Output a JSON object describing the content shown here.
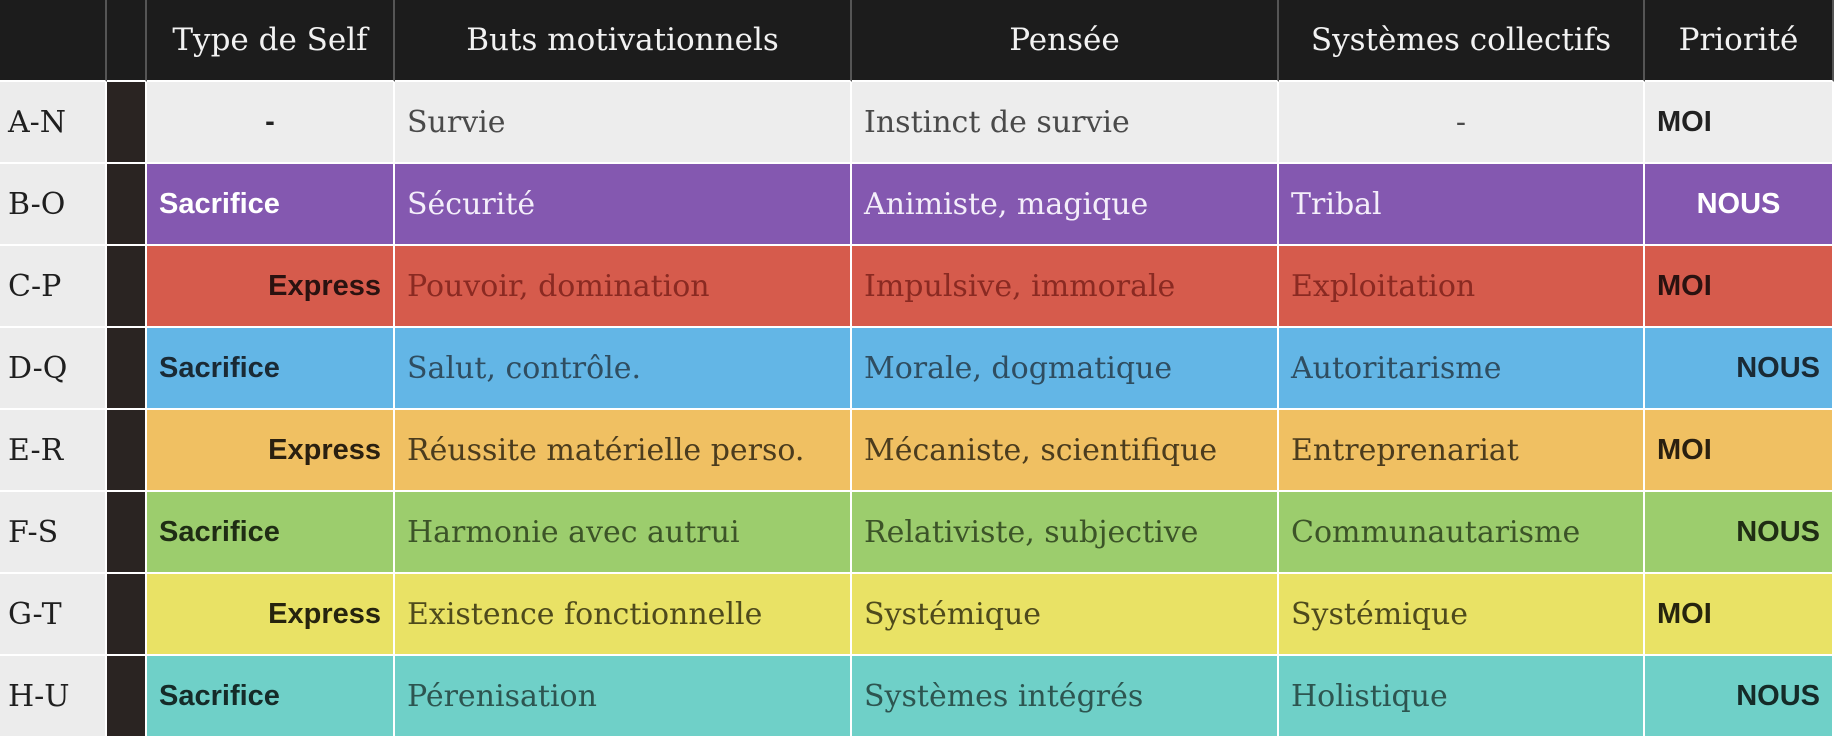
{
  "headers": [
    "",
    "",
    "Type de Self",
    "Buts motivationnels",
    "Pensée",
    "Systèmes collectifs",
    "Priorité"
  ],
  "rows": [
    {
      "label": "A-N",
      "self": "-",
      "self_kind": "dash",
      "buts": "Survie",
      "pensee": "Instinct de survie",
      "systemes": "-",
      "priorite": "MOI",
      "prio_kind": "moi",
      "bg": "#ededed",
      "text": "#4a4a4a",
      "strong": "#222222"
    },
    {
      "label": "B-O",
      "self": "Sacrifice",
      "self_kind": "sacrifice",
      "buts": "Sécurité",
      "pensee": "Animiste, magique",
      "systemes": "Tribal",
      "priorite": "NOUS",
      "prio_kind": "nous-center",
      "bg": "#8458b0",
      "text": "#f4eefa",
      "strong": "#ffffff"
    },
    {
      "label": "C-P",
      "self": "Express",
      "self_kind": "express",
      "buts": "Pouvoir, domination",
      "pensee": "Impulsive, immorale",
      "systemes": "Exploitation",
      "priorite": "MOI",
      "prio_kind": "moi",
      "bg": "#d65b4c",
      "text": "#8a2a22",
      "strong": "#2a1210"
    },
    {
      "label": "D-Q",
      "self": "Sacrifice",
      "self_kind": "sacrifice",
      "buts": "Salut, contrôle.",
      "pensee": "Morale, dogmatique",
      "systemes": "Autoritarisme",
      "priorite": "NOUS",
      "prio_kind": "nous",
      "bg": "#63b6e6",
      "text": "#2f4d60",
      "strong": "#1a2a35"
    },
    {
      "label": "E-R",
      "self": "Express",
      "self_kind": "express",
      "buts": "Réussite matérielle perso.",
      "pensee": "Mécaniste, scientifique",
      "systemes": "Entreprenariat",
      "priorite": "MOI",
      "prio_kind": "moi",
      "bg": "#f0c062",
      "text": "#4b3c1e",
      "strong": "#2a2010"
    },
    {
      "label": "F-S",
      "self": "Sacrifice",
      "self_kind": "sacrifice",
      "buts": "Harmonie avec autrui",
      "pensee": "Relativiste, subjective",
      "systemes": "Communautarisme",
      "priorite": "NOUS",
      "prio_kind": "nous",
      "bg": "#9ccd6d",
      "text": "#3c5428",
      "strong": "#1f2c14"
    },
    {
      "label": "G-T",
      "self": "Express",
      "self_kind": "express",
      "buts": "Existence fonctionnelle",
      "pensee": "Systémique",
      "systemes": "Systémique",
      "priorite": "MOI",
      "prio_kind": "moi",
      "bg": "#e9e265",
      "text": "#4e4a1c",
      "strong": "#26240e"
    },
    {
      "label": "H-U",
      "self": "Sacrifice",
      "self_kind": "sacrifice",
      "buts": "Pérenisation",
      "pensee": "Systèmes intégrés",
      "systemes": "Holistique",
      "priorite": "NOUS",
      "prio_kind": "nous",
      "bg": "#6fd0c8",
      "text": "#2d5550",
      "strong": "#152b28"
    }
  ]
}
